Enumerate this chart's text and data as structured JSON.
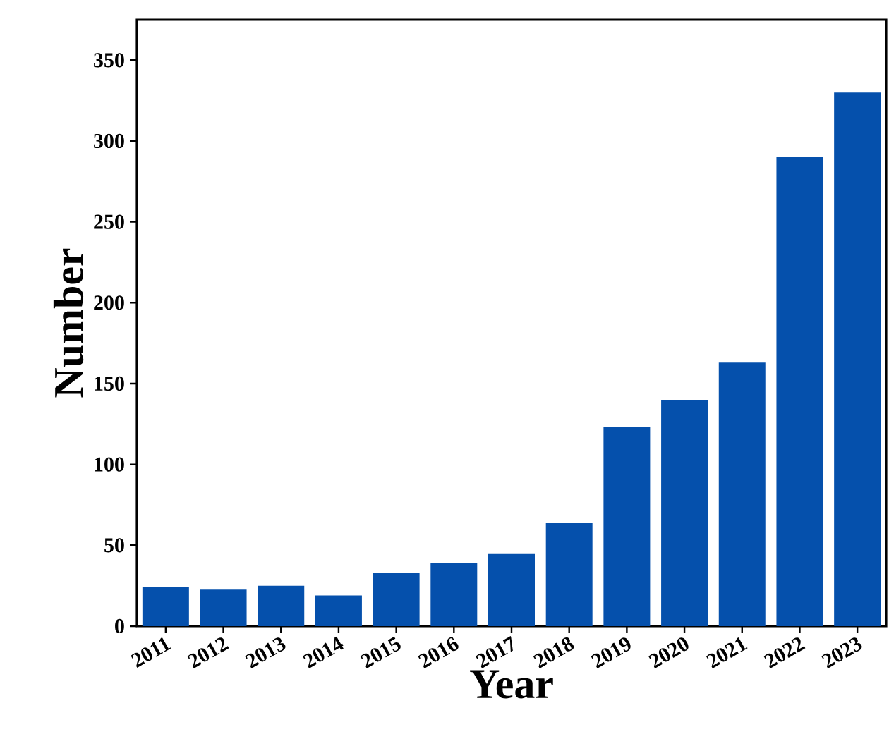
{
  "chart_data": {
    "type": "bar",
    "xlabel": "Year",
    "ylabel": "Number",
    "categories": [
      "2011",
      "2012",
      "2013",
      "2014",
      "2015",
      "2016",
      "2017",
      "2018",
      "2019",
      "2020",
      "2021",
      "2022",
      "2023"
    ],
    "values": [
      24,
      23,
      25,
      19,
      33,
      39,
      45,
      64,
      123,
      140,
      163,
      290,
      330
    ],
    "color": "#0550ac",
    "ylim": [
      0,
      375
    ],
    "yticks": [
      0,
      50,
      100,
      150,
      200,
      250,
      300,
      350
    ]
  }
}
